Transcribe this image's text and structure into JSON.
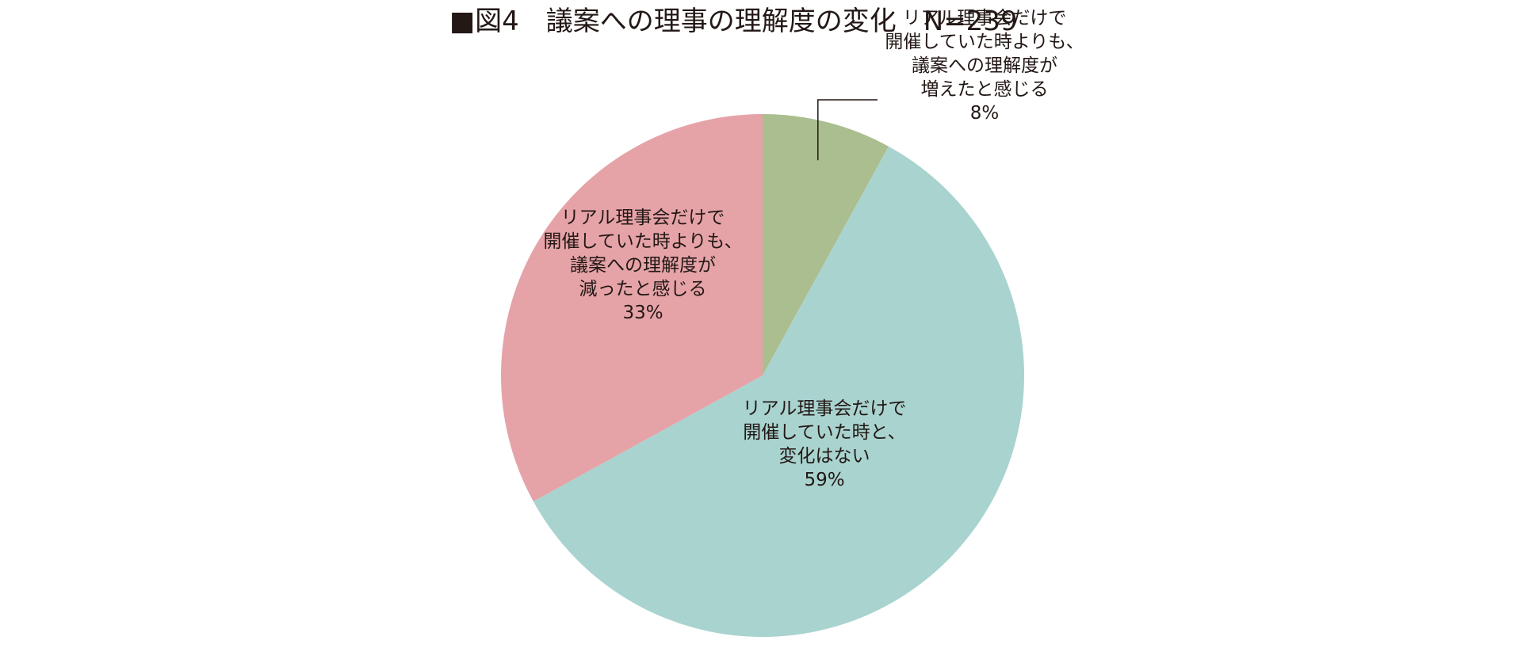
{
  "chart_data": {
    "type": "pie",
    "title": "■図4　議案への理事の理解度の変化　N=239",
    "slices": [
      {
        "label_lines": [
          "リアル理事会だけで",
          "開催していた時よりも、",
          "議案への理解度が",
          "増えたと感じる"
        ],
        "percent_label": "8%",
        "value": 8,
        "color": "#abbe8f"
      },
      {
        "label_lines": [
          "リアル理事会だけで",
          "開催していた時と、",
          "変化はない"
        ],
        "percent_label": "59%",
        "value": 59,
        "color": "#a9d3cf"
      },
      {
        "label_lines": [
          "リアル理事会だけで",
          "開催していた時よりも、",
          "議案への理解度が",
          "減ったと感じる"
        ],
        "percent_label": "33%",
        "value": 33,
        "color": "#e5a3a8"
      }
    ]
  }
}
